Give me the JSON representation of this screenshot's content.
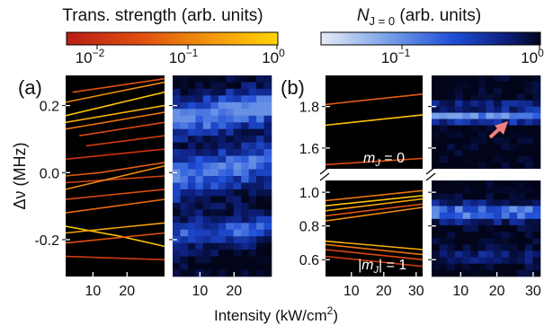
{
  "chart_data": [
    {
      "type": "line",
      "panel": "(a) left",
      "xlabel": "Intensity (kW/cm2)",
      "ylabel": "Δν (MHz)",
      "xlim": [
        2,
        31
      ],
      "ylim": [
        -0.31,
        0.29
      ],
      "x_ticks": [
        10,
        20
      ],
      "y_ticks": [
        0.2,
        0.0,
        -0.2
      ],
      "y_tick_labels": [
        "0.2",
        "0.0",
        "-0.2"
      ],
      "color_by": "Trans. strength (arb. units)",
      "series": [
        {
          "strength": 0.6,
          "points": [
            [
              2,
              0.21
            ],
            [
              31,
              0.27
            ]
          ]
        },
        {
          "strength": 0.35,
          "points": [
            [
              4,
              0.24
            ],
            [
              31,
              0.28
            ]
          ]
        },
        {
          "strength": 0.9,
          "points": [
            [
              2,
              0.17
            ],
            [
              31,
              0.24
            ]
          ]
        },
        {
          "strength": 0.8,
          "points": [
            [
              2,
              0.15
            ],
            [
              31,
              0.2
            ]
          ]
        },
        {
          "strength": 0.5,
          "points": [
            [
              2,
              0.13
            ],
            [
              31,
              0.18
            ]
          ]
        },
        {
          "strength": 0.3,
          "points": [
            [
              6,
              0.11
            ],
            [
              31,
              0.15
            ]
          ]
        },
        {
          "strength": 0.2,
          "points": [
            [
              8,
              0.08
            ],
            [
              31,
              0.11
            ]
          ]
        },
        {
          "strength": 0.15,
          "points": [
            [
              2,
              0.04
            ],
            [
              31,
              0.07
            ]
          ]
        },
        {
          "strength": 0.4,
          "points": [
            [
              2,
              -0.01
            ],
            [
              12,
              0.0
            ],
            [
              31,
              0.03
            ]
          ]
        },
        {
          "strength": 0.25,
          "points": [
            [
              2,
              -0.03
            ],
            [
              31,
              -0.01
            ]
          ]
        },
        {
          "strength": 0.6,
          "points": [
            [
              2,
              -0.05
            ],
            [
              31,
              0.02
            ]
          ]
        },
        {
          "strength": 0.3,
          "points": [
            [
              2,
              -0.08
            ],
            [
              31,
              -0.05
            ]
          ]
        },
        {
          "strength": 0.45,
          "points": [
            [
              2,
              -0.12
            ],
            [
              31,
              -0.08
            ]
          ]
        },
        {
          "strength": 0.9,
          "points": [
            [
              2,
              -0.16
            ],
            [
              18,
              -0.19
            ],
            [
              31,
              -0.22
            ]
          ]
        },
        {
          "strength": 0.7,
          "points": [
            [
              2,
              -0.18
            ],
            [
              31,
              -0.15
            ]
          ]
        },
        {
          "strength": 0.35,
          "points": [
            [
              2,
              -0.21
            ],
            [
              31,
              -0.18
            ]
          ]
        },
        {
          "strength": 0.2,
          "points": [
            [
              2,
              -0.25
            ],
            [
              31,
              -0.26
            ]
          ]
        }
      ]
    },
    {
      "type": "heatmap",
      "panel": "(a) right",
      "xlim": [
        2,
        31
      ],
      "ylim": [
        -0.31,
        0.29
      ],
      "x_ticks": [
        10,
        20
      ],
      "color_by": "N_{J=0} (arb. units)"
    },
    {
      "type": "line",
      "panel": "(b) left",
      "xlabel": "Intensity (kW/cm2)",
      "broken_y_axis": true,
      "upper": {
        "annotation": "m_J = 0",
        "ylim": [
          1.5,
          1.95
        ],
        "y_ticks": [
          1.8,
          1.6
        ],
        "y_tick_labels": [
          "1.8",
          "1.6"
        ],
        "series": [
          {
            "strength": 0.4,
            "points": [
              [
                2,
                1.81
              ],
              [
                32,
                1.86
              ]
            ]
          },
          {
            "strength": 0.9,
            "points": [
              [
                2,
                1.71
              ],
              [
                32,
                1.76
              ]
            ]
          },
          {
            "strength": 0.3,
            "points": [
              [
                2,
                1.52
              ],
              [
                32,
                1.55
              ]
            ]
          }
        ]
      },
      "lower": {
        "annotation": "|m_J| = 1",
        "ylim": [
          0.5,
          1.07
        ],
        "y_ticks": [
          1.0,
          0.8,
          0.6
        ],
        "y_tick_labels": [
          "1.0",
          "0.8",
          "0.6"
        ],
        "x_ticks": [
          10,
          20,
          30
        ],
        "series": [
          {
            "strength": 0.5,
            "points": [
              [
                2,
                0.95
              ],
              [
                32,
                1.01
              ]
            ]
          },
          {
            "strength": 0.9,
            "points": [
              [
                2,
                0.92
              ],
              [
                32,
                0.98
              ]
            ]
          },
          {
            "strength": 0.7,
            "points": [
              [
                2,
                0.89
              ],
              [
                32,
                0.96
              ]
            ]
          },
          {
            "strength": 0.35,
            "points": [
              [
                2,
                0.86
              ],
              [
                32,
                0.93
              ]
            ]
          },
          {
            "strength": 0.6,
            "points": [
              [
                2,
                0.83
              ],
              [
                32,
                0.91
              ]
            ]
          },
          {
            "strength": 0.8,
            "points": [
              [
                2,
                0.71
              ],
              [
                32,
                0.66
              ]
            ]
          },
          {
            "strength": 0.5,
            "points": [
              [
                2,
                0.69
              ],
              [
                32,
                0.63
              ]
            ]
          },
          {
            "strength": 0.3,
            "points": [
              [
                2,
                0.66
              ],
              [
                32,
                0.6
              ]
            ]
          },
          {
            "strength": 0.2,
            "points": [
              [
                2,
                0.62
              ],
              [
                32,
                0.56
              ]
            ]
          }
        ]
      }
    },
    {
      "type": "heatmap",
      "panel": "(b) right",
      "broken_y_axis": true,
      "x_ticks": [
        10,
        20,
        30
      ],
      "arrow_color": "#f08080"
    }
  ],
  "labels": {
    "panel_a": "(a)",
    "panel_b": "(b)",
    "y_axis_label": "Δν (MHz)",
    "x_axis_label_main": "Intensity (kW/cm",
    "x_axis_label_sup": "2",
    "x_axis_label_end": ")",
    "ann_mj0": "m",
    "ann_mj0_sub": "J",
    "ann_mj0_tail": " = 0",
    "ann_mj1_pre": "|m",
    "ann_mj1_sub": "J",
    "ann_mj1_tail": "| = 1"
  },
  "colorbars": {
    "strength": {
      "title": "Trans. strength (arb. units)",
      "ticks": [
        {
          "base": "10",
          "exp": "−2"
        },
        {
          "base": "10",
          "exp": "−1"
        },
        {
          "base": "10",
          "exp": "0"
        }
      ],
      "colors": [
        "#b81d13",
        "#e04e10",
        "#f39a0c",
        "#ffd400"
      ]
    },
    "population": {
      "title_pre": "N",
      "title_sub": "J = 0",
      "title_post": " (arb. units)",
      "ticks": [
        {
          "base": "10",
          "exp": "−1"
        },
        {
          "base": "10",
          "exp": "0"
        }
      ],
      "colors": [
        "#e8ecf6",
        "#7aa2e8",
        "#1f4fd8",
        "#0d1e7a",
        "#02051a"
      ]
    }
  },
  "colors": {
    "strength_low": "#b81d13",
    "strength_high": "#ffd400",
    "population_low": "#e8ecf6",
    "population_high": "#02051a"
  }
}
